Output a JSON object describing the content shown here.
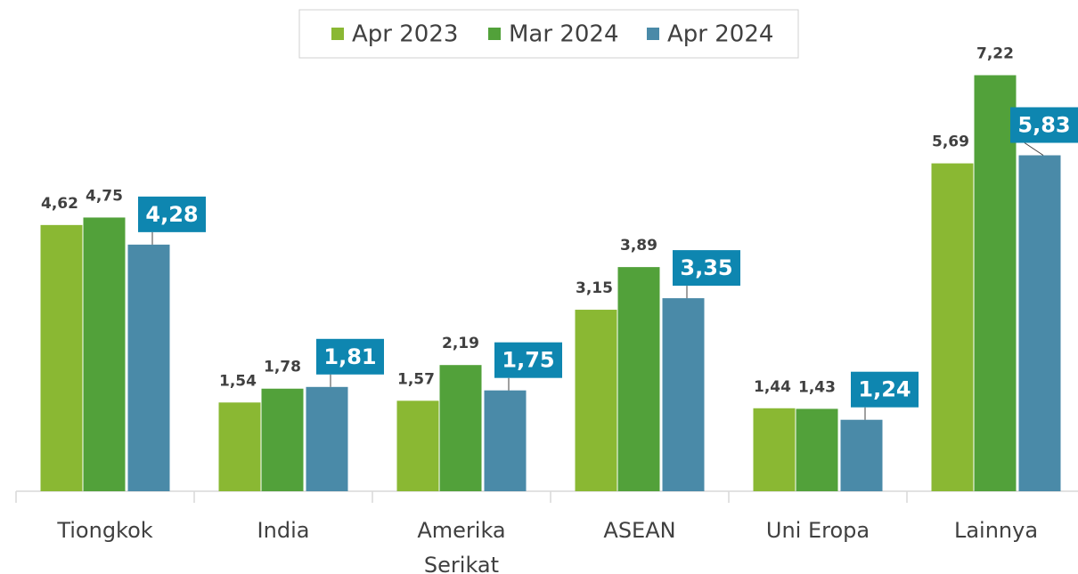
{
  "chart_data": {
    "type": "bar",
    "categories": [
      "Tiongkok",
      "India",
      "Amerika Serikat",
      "ASEAN",
      "Uni Eropa",
      "Lainnya"
    ],
    "series": [
      {
        "name": "Apr 2023",
        "color": "#8ab833",
        "values": [
          4.62,
          1.54,
          1.57,
          3.15,
          1.44,
          5.69
        ],
        "value_labels": [
          "4,62",
          "1,54",
          "1,57",
          "3,15",
          "1,44",
          "5,69"
        ]
      },
      {
        "name": "Mar 2024",
        "color": "#52a13a",
        "values": [
          4.75,
          1.78,
          2.19,
          3.89,
          1.43,
          7.22
        ],
        "value_labels": [
          "4,75",
          "1,78",
          "2,19",
          "3,89",
          "1,43",
          "7,22"
        ]
      },
      {
        "name": "Apr 2024",
        "color": "#4a8aa8",
        "values": [
          4.28,
          1.81,
          1.75,
          3.35,
          1.24,
          5.83
        ],
        "value_labels": [
          "4,28",
          "1,81",
          "1,75",
          "3,35",
          "1,24",
          "5,83"
        ]
      }
    ],
    "ylim": [
      0,
      8
    ],
    "legend": "top"
  }
}
